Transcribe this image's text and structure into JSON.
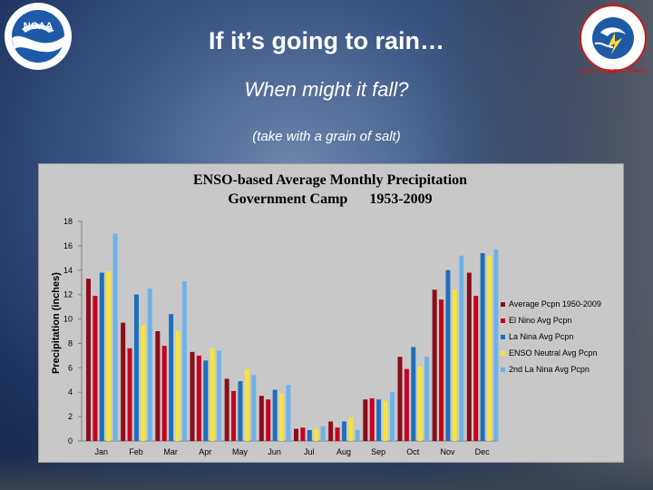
{
  "slide": {
    "title": "If it’s going to rain…",
    "subtitle": "When might it fall?",
    "note": "(take with a grain of salt)"
  },
  "logos": {
    "left": {
      "icon": "noaa-logo",
      "text": "NOAA"
    },
    "right": {
      "icon": "nws-logo",
      "text": "NATIONAL WEATHER SERVICE"
    }
  },
  "colors": {
    "series": [
      "#8b0d1c",
      "#c8001e",
      "#1d6fba",
      "#f5e43c",
      "#6fb2e6"
    ]
  },
  "chart_data": {
    "type": "bar",
    "title_lines": [
      "ENSO-based Average Monthly Precipitation",
      "Government Camp      1953-2009"
    ],
    "xlabel": "",
    "ylabel": "Precipitation (inches)",
    "ylim": [
      0,
      18
    ],
    "yticks": [
      0,
      2,
      4,
      6,
      8,
      10,
      12,
      14,
      16,
      18
    ],
    "grid": false,
    "legend_position": "right",
    "categories": [
      "Jan",
      "Feb",
      "Mar",
      "Apr",
      "May",
      "Jun",
      "Jul",
      "Aug",
      "Sep",
      "Oct",
      "Nov",
      "Dec"
    ],
    "series": [
      {
        "name": "Average Pcpn 1950-2009",
        "values": [
          13.3,
          9.7,
          9.0,
          7.3,
          5.1,
          3.7,
          1.0,
          1.6,
          3.4,
          6.9,
          12.4,
          13.8
        ]
      },
      {
        "name": "El Nino Avg Pcpn",
        "values": [
          11.9,
          7.6,
          7.8,
          7.0,
          4.1,
          3.4,
          1.1,
          1.1,
          3.5,
          5.9,
          11.6,
          11.9
        ]
      },
      {
        "name": "La Nina Avg Pcpn",
        "values": [
          13.8,
          12.0,
          10.4,
          6.6,
          4.9,
          4.2,
          0.9,
          1.6,
          3.4,
          7.7,
          14.0,
          15.4
        ]
      },
      {
        "name": "ENSO Neutral Avg Pcpn",
        "values": [
          13.9,
          9.5,
          9.0,
          7.6,
          5.9,
          3.9,
          1.0,
          1.9,
          3.3,
          6.1,
          12.4,
          15.2
        ]
      },
      {
        "name": "2nd La Nina Avg Pcpn",
        "values": [
          17.0,
          12.5,
          13.1,
          7.4,
          5.4,
          4.6,
          1.2,
          0.9,
          4.0,
          6.9,
          15.2,
          15.7
        ]
      }
    ]
  }
}
